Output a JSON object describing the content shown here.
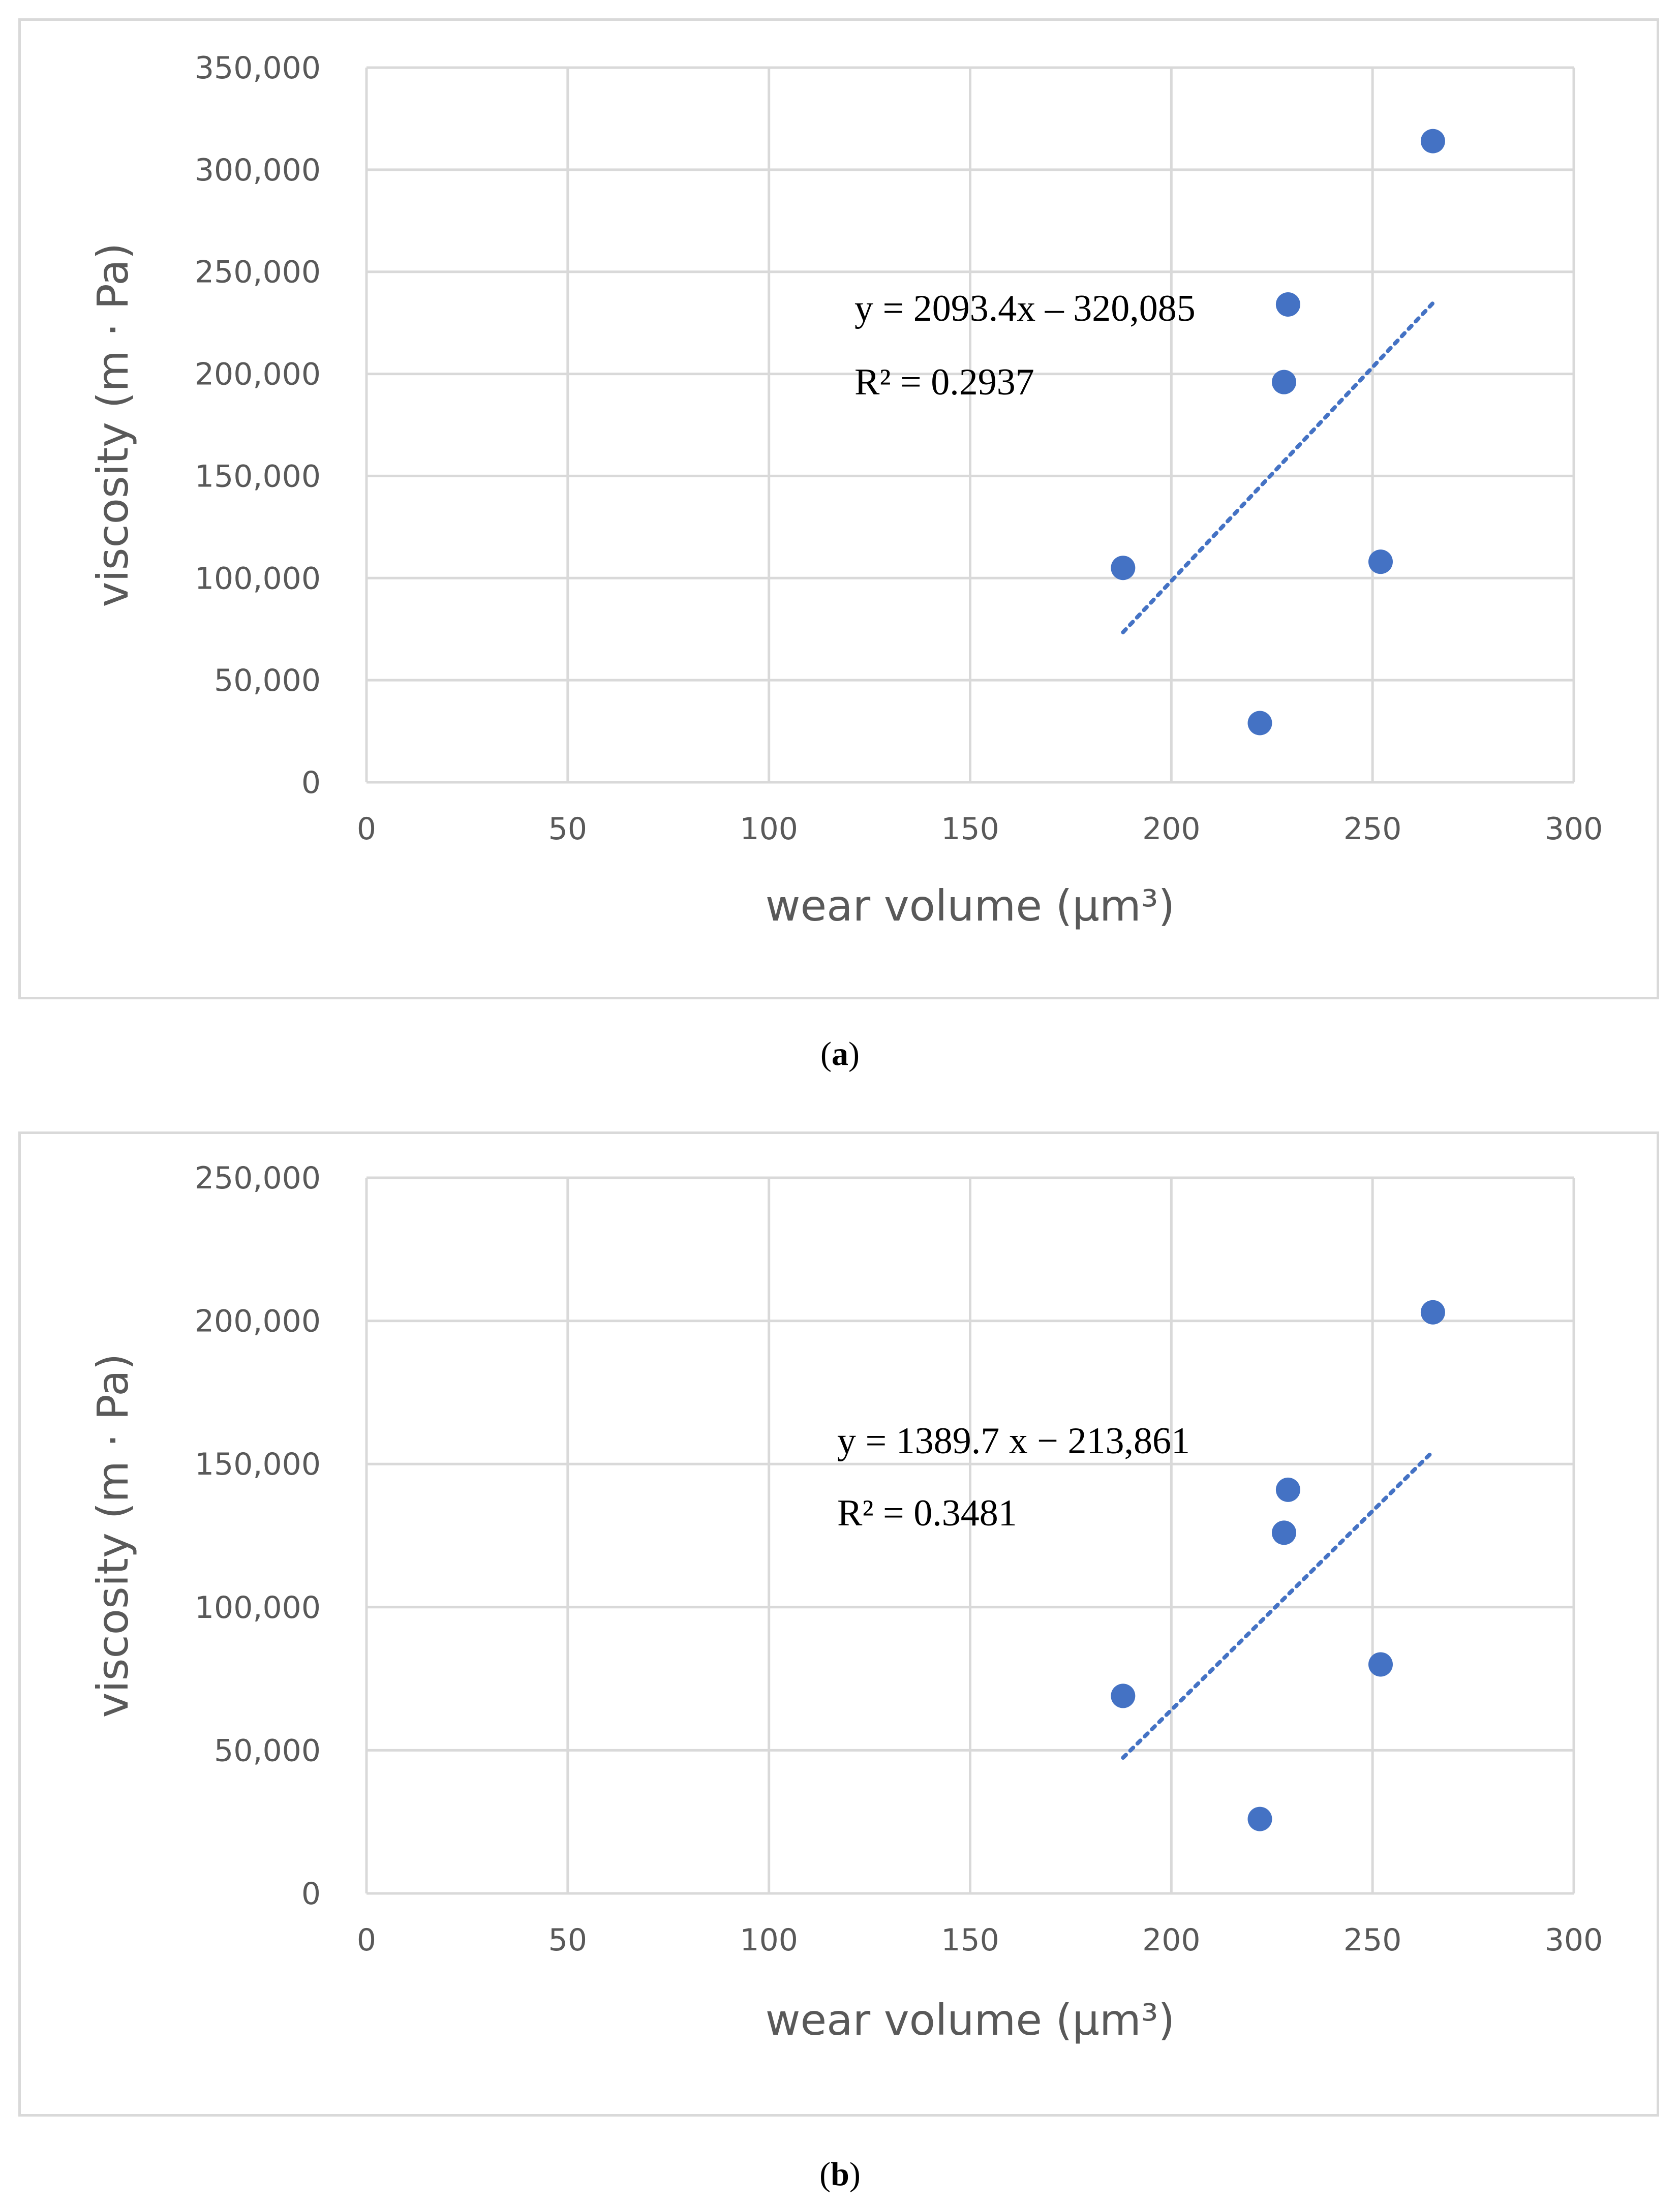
{
  "chart_data": [
    {
      "type": "scatter",
      "panel_label": "a",
      "xlabel": "wear volume (µm³)",
      "ylabel": "viscosity (m · Pa)",
      "xlim": [
        0,
        300
      ],
      "ylim": [
        0,
        350000
      ],
      "x_ticks": [
        0,
        50,
        100,
        150,
        200,
        250,
        300
      ],
      "y_ticks": [
        0,
        50000,
        100000,
        150000,
        200000,
        250000,
        300000,
        350000
      ],
      "x_tick_labels": [
        "0",
        "50",
        "100",
        "150",
        "200",
        "250",
        "300"
      ],
      "y_tick_labels": [
        "0",
        "50,000",
        "100,000",
        "150,000",
        "200,000",
        "250,000",
        "300,000",
        "350,000"
      ],
      "grid": true,
      "point_color": "#4472c4",
      "series": [
        {
          "name": "data",
          "x": [
            188,
            222,
            228,
            229,
            252,
            265
          ],
          "y": [
            105000,
            29000,
            196000,
            234000,
            108000,
            314000
          ]
        }
      ],
      "trendline": {
        "type": "linear",
        "slope": 2093.4,
        "intercept": -320085,
        "x_range": [
          188,
          265
        ],
        "style": "dotted",
        "equation": "y = 2093.4x – 320,085",
        "r2_label": "R² = 0.2937"
      }
    },
    {
      "type": "scatter",
      "panel_label": "b",
      "xlabel": "wear volume (µm³)",
      "ylabel": "viscosity (m · Pa)",
      "xlim": [
        0,
        300
      ],
      "ylim": [
        0,
        250000
      ],
      "x_ticks": [
        0,
        50,
        100,
        150,
        200,
        250,
        300
      ],
      "y_ticks": [
        0,
        50000,
        100000,
        150000,
        200000,
        250000
      ],
      "x_tick_labels": [
        "0",
        "50",
        "100",
        "150",
        "200",
        "250",
        "300"
      ],
      "y_tick_labels": [
        "0",
        "50,000",
        "100,000",
        "150,000",
        "200,000",
        "250,000"
      ],
      "grid": true,
      "point_color": "#4472c4",
      "series": [
        {
          "name": "data",
          "x": [
            188,
            222,
            228,
            229,
            252,
            265
          ],
          "y": [
            69000,
            26000,
            126000,
            141000,
            80000,
            203000
          ]
        }
      ],
      "trendline": {
        "type": "linear",
        "slope": 1389.7,
        "intercept": -213861,
        "x_range": [
          188,
          265
        ],
        "style": "dotted",
        "equation": "y = 1389.7 x − 213,861",
        "r2_label": "R² = 0.3481"
      }
    }
  ]
}
